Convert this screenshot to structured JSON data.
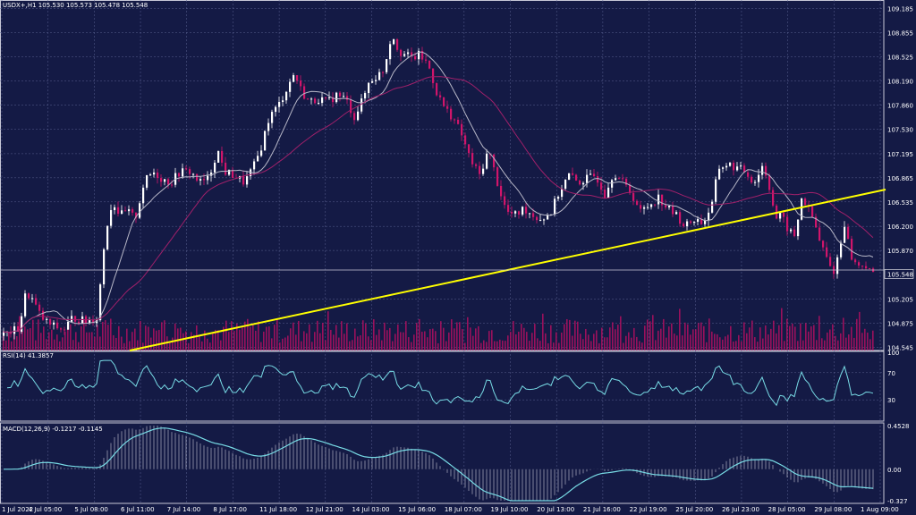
{
  "main_header": "USDX+,H1  105.530 105.573 105.478 105.548",
  "rsi_header": "RSI(14) 41.3857",
  "macd_header": "MACD(12,26,9) -0.1217 -0.1145",
  "current_price": "105.548",
  "colors": {
    "background": "#141a45",
    "grid": "#5a6190",
    "candle_up": "#ffffff",
    "candle_down": "#d0156a",
    "trendline": "#ffff00",
    "ma_fast": "#b8b8c8",
    "ma_slow": "#a0206a",
    "rsi_line": "#78dce6",
    "macd_line": "#78dce6",
    "volume": "#b01060"
  },
  "chart_data": [
    {
      "type": "candlestick",
      "title": "USDX+,H1",
      "price_labels": [
        "109.185",
        "108.855",
        "108.525",
        "108.190",
        "107.860",
        "107.530",
        "107.195",
        "106.865",
        "106.535",
        "106.200",
        "105.870",
        "105.548",
        "105.205",
        "104.875",
        "104.545"
      ],
      "ylim": [
        104.5,
        109.3
      ],
      "x_labels": [
        "1 Jul 2022",
        "4 Jul 05:00",
        "5 Jul 08:00",
        "6 Jul 11:00",
        "7 Jul 14:00",
        "8 Jul 17:00",
        "11 Jul 18:00",
        "12 Jul 21:00",
        "14 Jul 03:00",
        "15 Jul 06:00",
        "18 Jul 07:00",
        "19 Jul 10:00",
        "20 Jul 13:00",
        "21 Jul 16:00",
        "22 Jul 19:00",
        "25 Jul 20:00",
        "26 Jul 23:00",
        "28 Jul 05:00",
        "29 Jul 08:00",
        "1 Aug 09:00"
      ],
      "close_path": [
        [
          0,
          104.7
        ],
        [
          10,
          104.75
        ],
        [
          20,
          104.8
        ],
        [
          28,
          105.3
        ],
        [
          35,
          105.2
        ],
        [
          45,
          104.95
        ],
        [
          55,
          104.85
        ],
        [
          70,
          104.78
        ],
        [
          80,
          104.95
        ],
        [
          95,
          104.9
        ],
        [
          108,
          104.95
        ],
        [
          113,
          105.7
        ],
        [
          118,
          106.2
        ],
        [
          125,
          106.55
        ],
        [
          133,
          106.35
        ],
        [
          142,
          106.4
        ],
        [
          150,
          106.3
        ],
        [
          160,
          106.8
        ],
        [
          170,
          106.95
        ],
        [
          180,
          106.85
        ],
        [
          190,
          106.8
        ],
        [
          200,
          106.95
        ],
        [
          212,
          106.95
        ],
        [
          222,
          106.8
        ],
        [
          232,
          106.85
        ],
        [
          242,
          107.25
        ],
        [
          250,
          106.95
        ],
        [
          260,
          106.9
        ],
        [
          272,
          106.8
        ],
        [
          282,
          107.0
        ],
        [
          290,
          107.25
        ],
        [
          300,
          107.7
        ],
        [
          310,
          107.85
        ],
        [
          320,
          108.1
        ],
        [
          328,
          108.3
        ],
        [
          336,
          108.05
        ],
        [
          345,
          107.9
        ],
        [
          355,
          107.95
        ],
        [
          365,
          107.9
        ],
        [
          375,
          108.0
        ],
        [
          385,
          107.95
        ],
        [
          395,
          107.7
        ],
        [
          405,
          107.95
        ],
        [
          412,
          108.2
        ],
        [
          420,
          108.25
        ],
        [
          428,
          108.35
        ],
        [
          437,
          108.85
        ],
        [
          445,
          108.6
        ],
        [
          452,
          108.55
        ],
        [
          460,
          108.5
        ],
        [
          468,
          108.55
        ],
        [
          478,
          108.4
        ],
        [
          488,
          108.0
        ],
        [
          497,
          107.8
        ],
        [
          505,
          107.7
        ],
        [
          515,
          107.45
        ],
        [
          525,
          107.1
        ],
        [
          535,
          106.9
        ],
        [
          545,
          107.25
        ],
        [
          555,
          106.8
        ],
        [
          565,
          106.4
        ],
        [
          575,
          106.35
        ],
        [
          585,
          106.45
        ],
        [
          595,
          106.35
        ],
        [
          605,
          106.3
        ],
        [
          615,
          106.4
        ],
        [
          625,
          106.7
        ],
        [
          635,
          106.9
        ],
        [
          645,
          106.8
        ],
        [
          655,
          106.85
        ],
        [
          665,
          106.9
        ],
        [
          675,
          106.65
        ],
        [
          685,
          106.95
        ],
        [
          695,
          106.8
        ],
        [
          705,
          106.65
        ],
        [
          715,
          106.4
        ],
        [
          725,
          106.5
        ],
        [
          735,
          106.6
        ],
        [
          745,
          106.45
        ],
        [
          755,
          106.35
        ],
        [
          765,
          106.2
        ],
        [
          775,
          106.3
        ],
        [
          785,
          106.25
        ],
        [
          795,
          106.5
        ],
        [
          802,
          107.0
        ],
        [
          812,
          107.05
        ],
        [
          822,
          107.0
        ],
        [
          832,
          106.95
        ],
        [
          842,
          106.8
        ],
        [
          852,
          107.05
        ],
        [
          860,
          106.7
        ],
        [
          866,
          106.3
        ],
        [
          872,
          106.35
        ],
        [
          880,
          106.15
        ],
        [
          888,
          106.05
        ],
        [
          895,
          106.6
        ],
        [
          902,
          106.45
        ],
        [
          908,
          106.3
        ],
        [
          915,
          106.0
        ],
        [
          922,
          105.8
        ],
        [
          930,
          105.55
        ],
        [
          937,
          105.85
        ],
        [
          943,
          106.25
        ],
        [
          950,
          105.8
        ],
        [
          957,
          105.65
        ],
        [
          965,
          105.7
        ],
        [
          972,
          105.55
        ],
        [
          978,
          105.55
        ]
      ]
    },
    {
      "type": "line",
      "title": "RSI(14) 41.3857",
      "levels": [
        "100",
        "70",
        "30",
        "0"
      ],
      "ylim": [
        0,
        100
      ]
    },
    {
      "type": "line",
      "title": "MACD(12,26,9) -0.1217 -0.1145",
      "levels": [
        "0.4528",
        "0.00",
        "-0.327"
      ],
      "ylim": [
        -0.327,
        0.4528
      ]
    }
  ]
}
